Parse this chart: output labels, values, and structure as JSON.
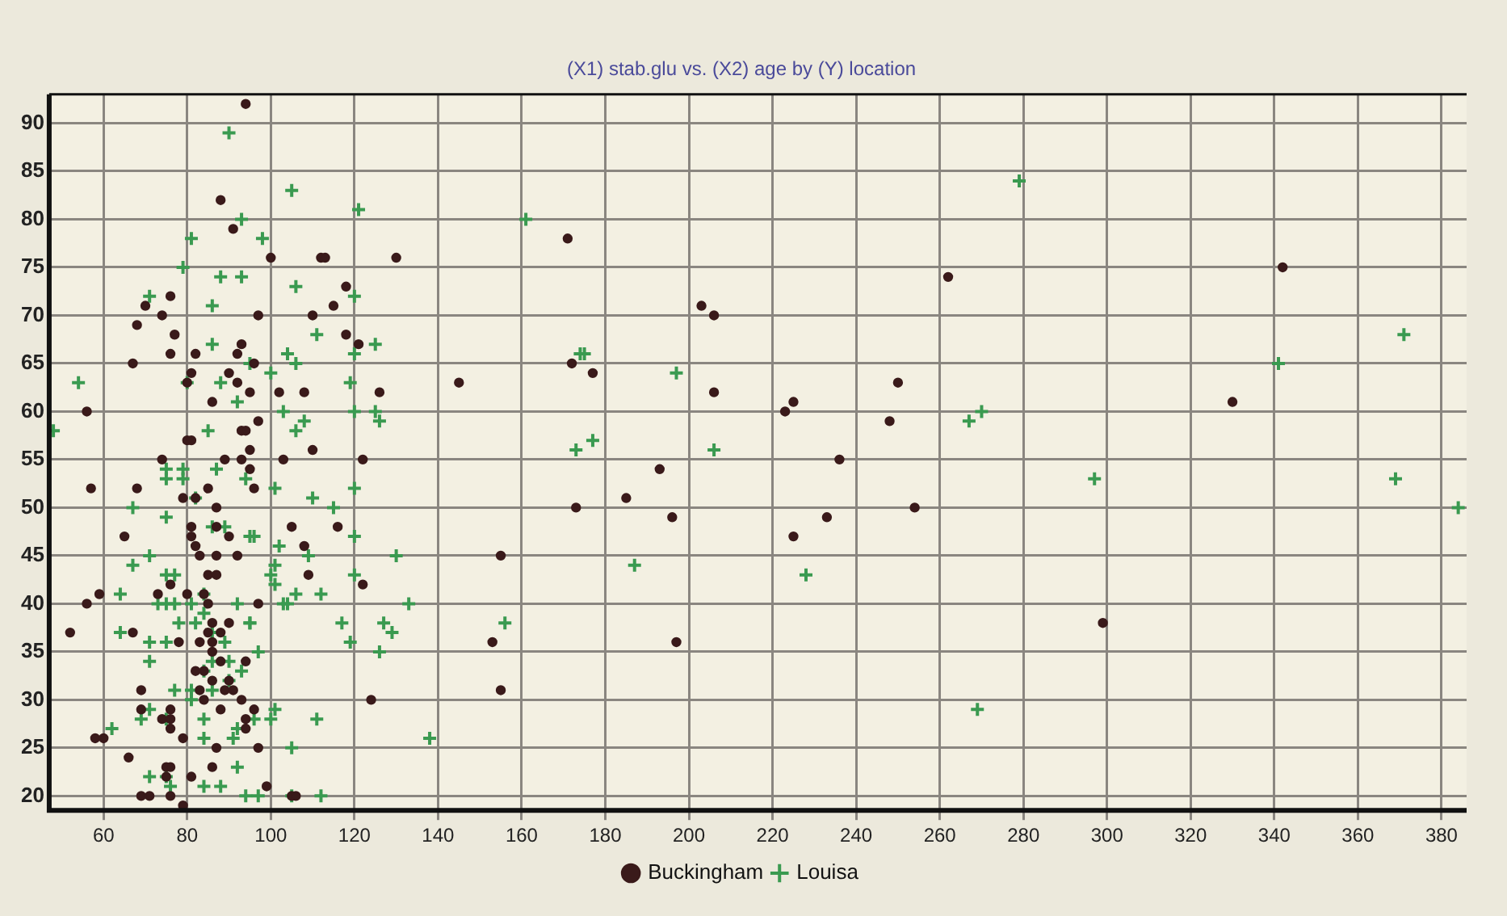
{
  "chart_data": {
    "type": "scatter",
    "title": "(X1) stab.glu vs. (X2) age by (Y) location",
    "xlim": [
      47,
      386
    ],
    "xticks": [
      60,
      80,
      100,
      120,
      140,
      160,
      180,
      200,
      220,
      240,
      260,
      280,
      300,
      320,
      340,
      360,
      380
    ],
    "ylim": [
      18.5,
      93
    ],
    "yticks": [
      20,
      25,
      30,
      35,
      40,
      45,
      50,
      55,
      60,
      65,
      70,
      75,
      80,
      85,
      90
    ],
    "grid": true,
    "legend": "bottom",
    "series": [
      {
        "name": "Buckingham",
        "color": "#3a1a1a",
        "marker": "circle",
        "x": [
          94,
          88,
          91,
          70,
          68,
          74,
          76,
          77,
          67,
          76,
          82,
          93,
          92,
          81,
          80,
          90,
          92,
          86,
          95,
          56,
          57,
          68,
          65,
          74,
          79,
          82,
          85,
          87,
          87,
          90,
          92,
          87,
          81,
          81,
          82,
          83,
          85,
          87,
          76,
          73,
          80,
          84,
          85,
          86,
          90,
          85,
          88,
          78,
          83,
          86,
          86,
          88,
          94,
          82,
          84,
          86,
          90,
          89,
          91,
          93,
          69,
          69,
          84,
          83,
          88,
          74,
          76,
          76,
          76,
          79,
          87,
          94,
          58,
          60,
          66,
          75,
          76,
          75,
          81,
          86,
          69,
          71,
          76,
          79,
          52,
          56,
          59,
          67,
          93,
          94,
          95,
          89,
          93,
          80,
          81,
          100,
          112,
          113,
          130,
          118,
          115,
          110,
          97,
          118,
          121,
          96,
          108,
          102,
          126,
          97,
          110,
          103,
          122,
          95,
          96,
          105,
          116,
          108,
          109,
          122,
          97,
          124,
          96,
          94,
          97,
          99,
          105,
          106,
          145,
          171,
          172,
          177,
          203,
          206,
          206,
          223,
          225,
          250,
          248,
          236,
          193,
          185,
          173,
          196,
          233,
          254,
          225,
          262,
          330,
          342,
          299,
          197,
          155,
          153,
          155
        ],
        "values": [
          92,
          82,
          79,
          71,
          69,
          70,
          72,
          68,
          65,
          66,
          66,
          67,
          66,
          64,
          63,
          64,
          63,
          61,
          62,
          60,
          52,
          52,
          47,
          55,
          51,
          51,
          52,
          50,
          48,
          47,
          45,
          45,
          48,
          47,
          46,
          45,
          43,
          43,
          42,
          41,
          41,
          41,
          40,
          38,
          38,
          37,
          37,
          36,
          36,
          36,
          35,
          34,
          34,
          33,
          33,
          32,
          32,
          31,
          31,
          30,
          31,
          29,
          30,
          31,
          29,
          28,
          28,
          29,
          27,
          26,
          25,
          28,
          26,
          26,
          24,
          23,
          23,
          22,
          22,
          23,
          20,
          20,
          20,
          19,
          37,
          40,
          41,
          37,
          58,
          58,
          56,
          55,
          55,
          57,
          57,
          76,
          76,
          76,
          76,
          73,
          71,
          70,
          70,
          68,
          67,
          65,
          62,
          62,
          62,
          59,
          56,
          55,
          55,
          54,
          52,
          48,
          48,
          46,
          43,
          42,
          40,
          30,
          29,
          27,
          25,
          21,
          20,
          20,
          63,
          78,
          65,
          64,
          71,
          70,
          62,
          60,
          61,
          63,
          59,
          55,
          54,
          51,
          50,
          49,
          49,
          50,
          47,
          74,
          61,
          75,
          38,
          36,
          45,
          36,
          31
        ]
      },
      {
        "name": "Louisa",
        "color": "#3a9a50",
        "marker": "cross",
        "x": [
          54,
          90,
          93,
          81,
          79,
          88,
          93,
          71,
          86,
          86,
          80,
          88,
          95,
          48,
          67,
          71,
          64,
          64,
          67,
          75,
          75,
          75,
          79,
          79,
          82,
          87,
          85,
          71,
          75,
          71,
          75,
          75,
          73,
          77,
          77,
          81,
          78,
          82,
          84,
          86,
          89,
          90,
          86,
          84,
          86,
          81,
          81,
          77,
          71,
          69,
          75,
          84,
          84,
          91,
          62,
          71,
          75,
          76,
          84,
          88,
          92,
          94,
          92,
          96,
          95,
          90,
          89,
          86,
          92,
          84,
          105,
          121,
          98,
          106,
          120,
          111,
          125,
          120,
          104,
          106,
          100,
          119,
          125,
          92,
          103,
          108,
          106,
          126,
          120,
          94,
          101,
          110,
          115,
          120,
          95,
          102,
          109,
          120,
          130,
          101,
          100,
          101,
          106,
          104,
          103,
          112,
          120,
          133,
          117,
          119,
          127,
          129,
          126,
          97,
          93,
          95,
          101,
          96,
          100,
          111,
          105,
          97,
          105,
          112,
          138,
          161,
          174,
          175,
          173,
          177,
          197,
          206,
          187,
          228,
          279,
          267,
          270,
          269,
          297,
          341,
          371,
          369,
          156,
          384
        ],
        "values": [
          63,
          89,
          80,
          78,
          75,
          74,
          74,
          72,
          71,
          67,
          63,
          63,
          65,
          58,
          44,
          45,
          41,
          37,
          50,
          49,
          53,
          54,
          54,
          53,
          51,
          54,
          58,
          36,
          36,
          34,
          43,
          40,
          40,
          43,
          40,
          40,
          38,
          38,
          39,
          37,
          36,
          34,
          34,
          33,
          31,
          31,
          30,
          31,
          29,
          28,
          28,
          28,
          26,
          26,
          27,
          22,
          22,
          21,
          21,
          21,
          23,
          20,
          40,
          47,
          38,
          32,
          48,
          48,
          27,
          41,
          83,
          81,
          78,
          73,
          72,
          68,
          67,
          66,
          66,
          65,
          64,
          63,
          60,
          61,
          60,
          59,
          58,
          59,
          60,
          53,
          52,
          51,
          50,
          52,
          47,
          46,
          45,
          47,
          45,
          44,
          43,
          42,
          41,
          40,
          40,
          41,
          43,
          40,
          38,
          36,
          38,
          37,
          35,
          35,
          33,
          38,
          29,
          28,
          28,
          28,
          25,
          20,
          20,
          20,
          26,
          80,
          66,
          66,
          56,
          57,
          64,
          56,
          44,
          43,
          84,
          59,
          60,
          29,
          53,
          65,
          68,
          53,
          38,
          50
        ]
      }
    ]
  }
}
